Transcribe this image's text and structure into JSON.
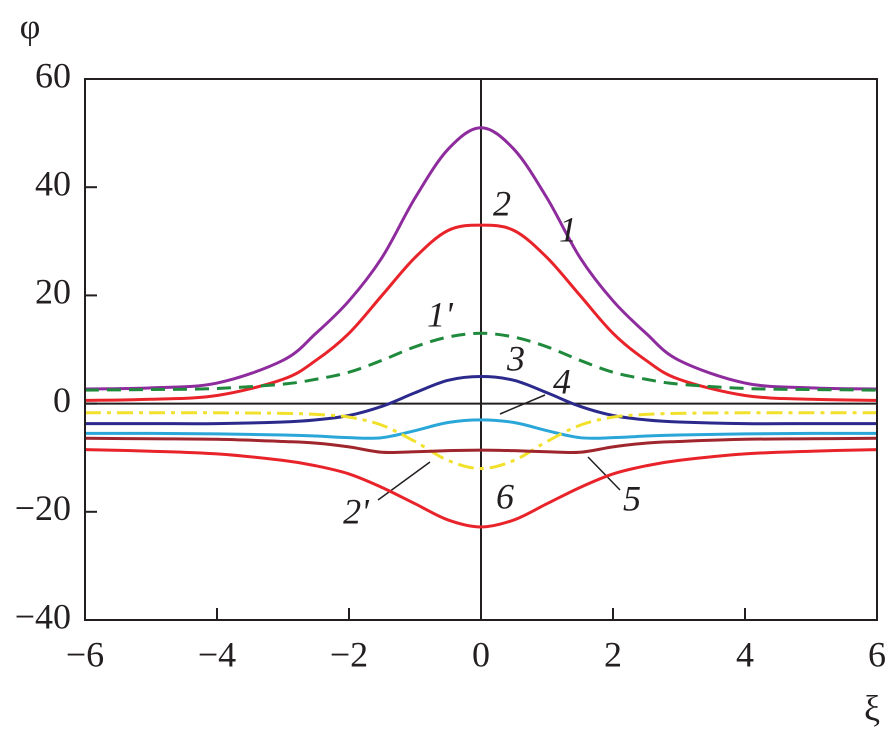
{
  "chart_data": {
    "type": "line",
    "y_label": "φ",
    "x_label": "ξ",
    "x": [
      -6,
      -5,
      -4,
      -3,
      -2.5,
      -2,
      -1.5,
      -1,
      -0.5,
      0,
      0.5,
      1,
      1.5,
      2,
      2.5,
      3,
      4,
      5,
      6
    ],
    "xlim": [
      -6,
      6
    ],
    "ylim": [
      -40,
      60
    ],
    "xticks": [
      {
        "value": -6,
        "label": "−6"
      },
      {
        "value": -4,
        "label": "−4"
      },
      {
        "value": -2,
        "label": "−2"
      },
      0,
      2,
      4,
      6
    ],
    "yticks": [
      {
        "value": -40,
        "label": "−40"
      },
      {
        "value": -20,
        "label": "−20"
      },
      0,
      20,
      40,
      60
    ],
    "series": [
      {
        "name": "1",
        "color": "#8e2c9e",
        "style": "solid",
        "values": [
          2.7,
          2.9,
          3.8,
          8,
          13,
          19,
          27,
          38,
          47,
          51,
          47,
          38,
          27,
          19,
          13,
          8,
          3.8,
          2.9,
          2.7
        ]
      },
      {
        "name": "2",
        "color": "#e8232a",
        "style": "solid",
        "values": [
          0.6,
          0.8,
          1.5,
          4.5,
          8,
          13,
          20,
          27,
          32,
          33,
          32,
          27,
          20,
          13,
          8,
          4.5,
          1.5,
          0.8,
          0.6
        ]
      },
      {
        "name": "1'",
        "color": "#1f8a3c",
        "style": "dashed",
        "values": [
          2.5,
          2.6,
          2.8,
          3.6,
          4.5,
          5.8,
          8,
          10.5,
          12.3,
          13,
          12.3,
          10.5,
          8,
          5.8,
          4.5,
          3.6,
          2.8,
          2.6,
          2.5
        ]
      },
      {
        "name": "3",
        "color": "#2b2a8c",
        "style": "solid",
        "values": [
          -3.7,
          -3.7,
          -3.7,
          -3.4,
          -3,
          -2.2,
          -0.5,
          2,
          4.3,
          5,
          4.3,
          2,
          -0.5,
          -2.2,
          -3,
          -3.4,
          -3.7,
          -3.7,
          -3.7
        ]
      },
      {
        "name": "4",
        "color": "#2aa7d8",
        "style": "solid",
        "values": [
          -5.5,
          -5.5,
          -5.6,
          -5.8,
          -6,
          -6.3,
          -6.3,
          -5,
          -3.5,
          -3,
          -3.5,
          -5,
          -6.3,
          -6.3,
          -6,
          -5.8,
          -5.6,
          -5.5,
          -5.5
        ]
      },
      {
        "name": "2'",
        "color": "#f2e12c",
        "style": "dashdot",
        "values": [
          -1.7,
          -1.7,
          -1.7,
          -1.8,
          -2,
          -2.5,
          -4,
          -7,
          -10.5,
          -12,
          -10.5,
          -7,
          -4,
          -2.5,
          -2,
          -1.8,
          -1.7,
          -1.7,
          -1.7
        ]
      },
      {
        "name": "5",
        "color": "#a0262e",
        "style": "solid",
        "values": [
          -6.4,
          -6.5,
          -6.6,
          -7,
          -7.3,
          -8,
          -9,
          -8.9,
          -8.7,
          -8.6,
          -8.7,
          -8.9,
          -9,
          -8,
          -7.3,
          -7,
          -6.6,
          -6.5,
          -6.4
        ]
      },
      {
        "name": "6",
        "color": "#e8232a",
        "style": "solid",
        "values": [
          -8.5,
          -8.8,
          -9.3,
          -10.5,
          -11.5,
          -13,
          -15.5,
          -18.5,
          -21.5,
          -22.8,
          -21.5,
          -18.5,
          -15.5,
          -13,
          -11.5,
          -10.5,
          -9.3,
          -8.8,
          -8.5
        ]
      }
    ]
  }
}
